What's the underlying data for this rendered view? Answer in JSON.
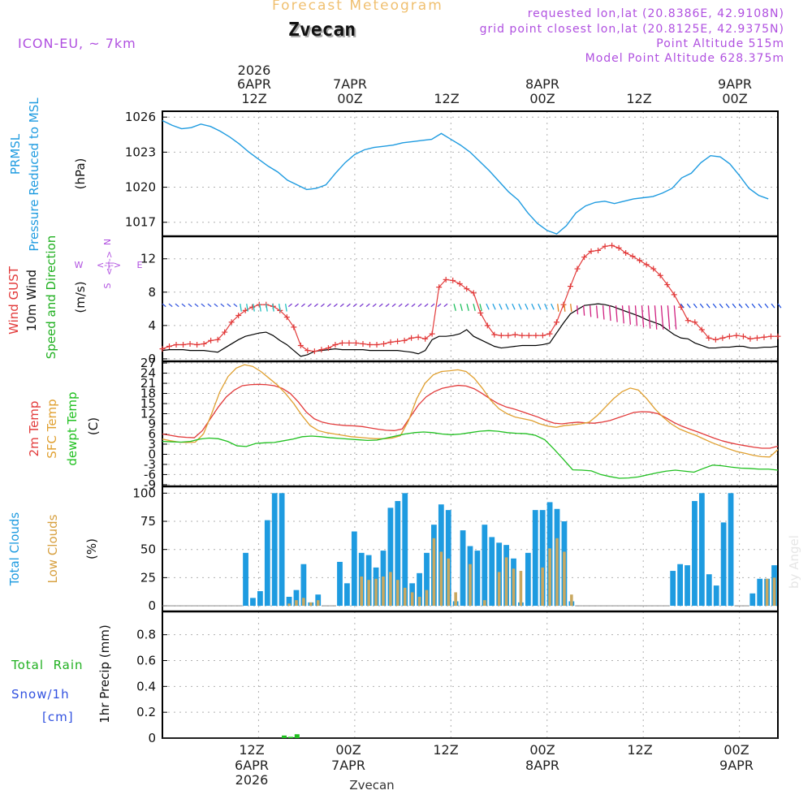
{
  "header": {
    "title": "Forecast Meteogram",
    "location": "Zvecan",
    "model": "ICON-EU, ~ 7km",
    "requested": "requested lon,lat (20.8386E, 42.9108N)",
    "gridpoint": "grid point closest lon,lat (20.8125E, 42.9375N)",
    "point_alt": "Point Altitude 515m",
    "model_alt": "Model Point Altitude 628.375m",
    "credit": "by Angel",
    "footer_name": "Zvecan"
  },
  "colors": {
    "pressure": "#1e9be0",
    "gust": "#e23a3a",
    "wind": "#000000",
    "temp2m": "#e23a3a",
    "sfc": "#e0a030",
    "dewpt": "#20c020",
    "total_clouds": "#1e9be0",
    "low_clouds": "#c9a860",
    "rain": "#20c020",
    "snow": "#3050e0",
    "header_purple": "#b050e0",
    "title_orange": "#f0c070"
  },
  "top_axis": [
    {
      "l1": "2026",
      "l2": "6APR",
      "l3": "12Z"
    },
    {
      "l1": "",
      "l2": "7APR",
      "l3": "00Z"
    },
    {
      "l1": "",
      "l2": "",
      "l3": "12Z"
    },
    {
      "l1": "",
      "l2": "8APR",
      "l3": "00Z"
    },
    {
      "l1": "",
      "l2": "",
      "l3": "12Z"
    },
    {
      "l1": "",
      "l2": "9APR",
      "l3": "00Z"
    }
  ],
  "bottom_axis": [
    {
      "l1": "12Z",
      "l2": "6APR",
      "l3": "2026"
    },
    {
      "l1": "00Z",
      "l2": "7APR",
      "l3": ""
    },
    {
      "l1": "12Z",
      "l2": "",
      "l3": ""
    },
    {
      "l1": "00Z",
      "l2": "8APR",
      "l3": ""
    },
    {
      "l1": "12Z",
      "l2": "",
      "l3": ""
    },
    {
      "l1": "00Z",
      "l2": "9APR",
      "l3": ""
    }
  ],
  "chart_data": [
    {
      "type": "line",
      "panel": "pressure",
      "title": "PRMSL Pressure Reduced to MSL",
      "ylabel": "(hPa)",
      "ylim": [
        1015.8,
        1026.5
      ],
      "yticks": [
        1017,
        1020,
        1023,
        1026
      ],
      "series": [
        {
          "name": "PRMSL",
          "x": [
            0,
            3,
            6,
            9,
            12,
            15,
            18,
            21,
            24,
            27,
            30,
            33,
            36,
            39,
            42,
            45,
            48,
            51,
            54,
            57,
            60,
            63,
            66,
            69,
            72,
            75,
            78,
            81,
            84,
            87,
            90,
            93,
            96,
            99,
            102,
            105,
            108,
            111,
            114,
            117,
            120,
            123,
            126,
            129,
            132,
            135,
            138,
            141,
            144,
            147,
            150,
            153,
            156,
            159,
            162,
            165,
            168,
            171,
            174,
            177,
            180,
            183,
            186,
            189
          ],
          "values": [
            1025.7,
            1025.3,
            1025.0,
            1025.1,
            1025.4,
            1025.2,
            1024.8,
            1024.3,
            1023.7,
            1023.0,
            1022.4,
            1021.8,
            1021.3,
            1020.6,
            1020.2,
            1019.8,
            1019.9,
            1020.2,
            1021.2,
            1022.1,
            1022.8,
            1023.2,
            1023.4,
            1023.5,
            1023.6,
            1023.8,
            1023.9,
            1024.0,
            1024.1,
            1024.6,
            1024.1,
            1023.6,
            1023.0,
            1022.2,
            1021.4,
            1020.5,
            1019.6,
            1018.9,
            1017.8,
            1016.9,
            1016.3,
            1016.0,
            1016.7,
            1017.8,
            1018.4,
            1018.7,
            1018.8,
            1018.6,
            1018.8,
            1019.0,
            1019.1,
            1019.2,
            1019.5,
            1019.9,
            1020.8,
            1021.2,
            1022.1,
            1022.7,
            1022.6,
            1022.0,
            1021.0,
            1019.9,
            1019.3,
            1019.0
          ]
        }
      ]
    },
    {
      "type": "line",
      "panel": "wind",
      "title": "Wind GUST / 10m Wind Speed and Direction",
      "ylabel": "(m/s)",
      "ylim": [
        -0.3,
        14.7
      ],
      "yticks": [
        0,
        4,
        8,
        12
      ],
      "compass": {
        "n": "N",
        "s": "S",
        "w": "W",
        "e": "E",
        "arrow": "<-|->"
      },
      "series": [
        {
          "name": "Wind GUST",
          "values": [
            1.2,
            1.5,
            1.7,
            1.7,
            1.8,
            1.7,
            1.8,
            2.2,
            2.3,
            3.2,
            4.4,
            5.2,
            5.8,
            6.2,
            6.5,
            6.5,
            6.3,
            5.8,
            5.0,
            3.8,
            1.6,
            1.0,
            0.9,
            1.1,
            1.3,
            1.7,
            1.9,
            1.9,
            1.9,
            1.8,
            1.7,
            1.7,
            1.8,
            2.0,
            2.1,
            2.2,
            2.5,
            2.6,
            2.4,
            3.0,
            8.6,
            9.5,
            9.4,
            9.0,
            8.4,
            7.9,
            5.5,
            4.0,
            2.9,
            2.8,
            2.8,
            2.9,
            2.8,
            2.8,
            2.8,
            2.8,
            3.0,
            4.4,
            6.5,
            8.7,
            10.8,
            12.2,
            12.9,
            13.0,
            13.5,
            13.6,
            13.3,
            12.7,
            12.3,
            11.8,
            11.3,
            10.8,
            10.0,
            8.9,
            7.7,
            6.2,
            4.6,
            4.4,
            3.5,
            2.5,
            2.3,
            2.5,
            2.7,
            2.8,
            2.7,
            2.4,
            2.5,
            2.6,
            2.7,
            2.7
          ]
        },
        {
          "name": "10m Wind",
          "values": [
            1.0,
            1.1,
            1.1,
            1.1,
            1.0,
            1.0,
            1.0,
            0.9,
            0.8,
            1.3,
            1.8,
            2.3,
            2.7,
            2.9,
            3.1,
            3.2,
            2.8,
            2.2,
            1.7,
            1.0,
            0.3,
            0.5,
            0.9,
            1.0,
            1.1,
            1.2,
            1.1,
            1.1,
            1.1,
            1.1,
            1.0,
            1.0,
            1.0,
            1.0,
            1.0,
            0.9,
            0.8,
            0.6,
            1.0,
            2.3,
            2.7,
            2.7,
            2.8,
            3.0,
            3.5,
            2.7,
            2.3,
            1.9,
            1.5,
            1.3,
            1.4,
            1.5,
            1.6,
            1.6,
            1.6,
            1.7,
            1.9,
            3.1,
            4.3,
            5.4,
            5.9,
            6.4,
            6.5,
            6.6,
            6.5,
            6.3,
            6.0,
            5.7,
            5.4,
            5.1,
            4.7,
            4.4,
            4.1,
            3.5,
            2.9,
            2.5,
            2.4,
            1.9,
            1.6,
            1.3,
            1.3,
            1.4,
            1.4,
            1.5,
            1.5,
            1.3,
            1.3,
            1.4,
            1.4,
            1.5
          ]
        }
      ]
    },
    {
      "type": "line",
      "panel": "temperature",
      "title": "2m Temp / SFC Temp / dewpt Temp",
      "ylabel": "(C)",
      "ylim": [
        -9.5,
        27.5
      ],
      "yticks": [
        -9,
        -6,
        -3,
        0,
        3,
        6,
        9,
        12,
        15,
        18,
        21,
        24,
        27
      ],
      "series": [
        {
          "name": "2m Temp",
          "values": [
            6.0,
            5.6,
            5.2,
            5.0,
            4.9,
            7.0,
            10.5,
            14.0,
            17.0,
            19.0,
            20.3,
            20.6,
            20.7,
            20.6,
            20.3,
            19.5,
            18.0,
            15.5,
            12.5,
            10.5,
            9.5,
            9.0,
            8.7,
            8.5,
            8.4,
            8.2,
            7.8,
            7.4,
            7.1,
            7.0,
            7.5,
            11.0,
            14.5,
            17.0,
            18.5,
            19.5,
            20.0,
            20.4,
            20.2,
            19.4,
            18.0,
            16.4,
            15.0,
            14.0,
            13.4,
            12.6,
            11.8,
            11.0,
            10.0,
            9.2,
            9.0,
            9.3,
            9.5,
            9.3,
            9.2,
            9.5,
            10.0,
            10.8,
            11.6,
            12.4,
            12.6,
            12.5,
            12.0,
            10.8,
            9.4,
            8.3,
            7.4,
            6.6,
            5.7,
            4.8,
            4.0,
            3.4,
            2.9,
            2.5,
            2.1,
            1.8,
            1.8,
            2.4
          ]
        },
        {
          "name": "SFC Temp",
          "values": [
            4.5,
            4.0,
            3.6,
            3.5,
            3.6,
            6.0,
            12.0,
            18.5,
            23.0,
            25.5,
            26.5,
            26.0,
            24.5,
            22.5,
            20.5,
            18.0,
            15.0,
            11.5,
            8.5,
            7.0,
            6.4,
            6.0,
            5.6,
            5.2,
            5.0,
            4.8,
            4.6,
            4.6,
            4.8,
            5.5,
            10.0,
            16.5,
            21.0,
            23.5,
            24.5,
            24.7,
            25.0,
            24.5,
            22.5,
            19.5,
            16.0,
            13.5,
            12.0,
            11.0,
            10.5,
            10.0,
            9.0,
            8.3,
            8.0,
            8.5,
            8.7,
            9.0,
            9.5,
            11.5,
            14.0,
            16.5,
            18.5,
            19.6,
            19.0,
            16.5,
            13.5,
            11.0,
            9.0,
            7.5,
            6.5,
            5.6,
            4.5,
            3.4,
            2.5,
            1.6,
            0.8,
            0.3,
            -0.3,
            -0.7,
            -0.8,
            1.4
          ]
        },
        {
          "name": "dewpt Temp",
          "values": [
            3.8,
            3.7,
            3.6,
            3.8,
            4.5,
            4.8,
            4.6,
            3.8,
            2.5,
            2.3,
            3.2,
            3.4,
            3.5,
            4.0,
            4.5,
            5.2,
            5.4,
            5.2,
            4.9,
            4.7,
            4.5,
            4.3,
            4.1,
            4.2,
            4.8,
            5.4,
            6.0,
            6.4,
            6.6,
            6.4,
            6.0,
            5.8,
            6.0,
            6.4,
            6.8,
            7.0,
            6.8,
            6.4,
            6.2,
            6.1,
            5.6,
            4.3,
            1.5,
            -1.5,
            -4.6,
            -4.7,
            -4.9,
            -6.0,
            -6.6,
            -7.1,
            -7.0,
            -6.7,
            -6.1,
            -5.5,
            -5.0,
            -4.7,
            -5.0,
            -5.3,
            -4.2,
            -3.2,
            -3.4,
            -3.8,
            -4.1,
            -4.2,
            -4.4,
            -4.4,
            -4.7
          ]
        }
      ]
    },
    {
      "type": "bar",
      "panel": "clouds",
      "title": "Total Clouds / Low Clouds",
      "ylabel": "(%)",
      "ylim": [
        -5,
        106
      ],
      "yticks": [
        0,
        25,
        50,
        75,
        100
      ],
      "series": [
        {
          "name": "Total Clouds",
          "values": [
            0,
            0,
            0,
            0,
            0,
            0,
            0,
            0,
            0,
            0,
            0,
            47,
            7,
            13,
            76,
            100,
            100,
            8,
            14,
            37,
            3,
            10,
            0,
            0,
            39,
            20,
            66,
            47,
            45,
            34,
            49,
            87,
            93,
            100,
            20,
            29,
            47,
            72,
            90,
            85,
            4,
            67,
            53,
            49,
            72,
            61,
            56,
            54,
            42,
            3,
            47,
            85,
            85,
            92,
            86,
            75,
            4,
            0,
            0,
            0,
            0,
            0,
            0,
            0,
            0,
            0,
            0,
            0,
            0,
            0,
            31,
            37,
            36,
            93,
            100,
            28,
            18,
            74,
            100,
            0,
            0,
            11,
            24,
            24,
            36
          ]
        },
        {
          "name": "Low Clouds",
          "values": [
            0,
            0,
            0,
            0,
            0,
            0,
            0,
            0,
            0,
            0,
            0,
            0,
            0,
            0,
            0,
            0,
            0,
            2,
            5,
            7,
            3,
            5,
            0,
            0,
            0,
            0,
            0,
            26,
            23,
            24,
            26,
            30,
            23,
            16,
            12,
            8,
            14,
            60,
            48,
            42,
            12,
            0,
            37,
            0,
            5,
            0,
            30,
            43,
            33,
            31,
            0,
            0,
            34,
            51,
            60,
            48,
            10,
            0,
            0,
            0,
            0,
            0,
            0,
            0,
            0,
            0,
            0,
            0,
            0,
            0,
            0,
            0,
            0,
            0,
            0,
            0,
            0,
            0,
            0,
            0,
            0,
            0,
            0,
            24,
            25
          ]
        }
      ]
    },
    {
      "type": "bar",
      "panel": "precip",
      "title": "Total Rain / Snow/1h [cm]",
      "ylabel": "1hr Precip (mm)",
      "ylim": [
        0,
        0.98
      ],
      "yticks": [
        0,
        0.2,
        0.4,
        0.6,
        0.8
      ],
      "series": [
        {
          "name": "Total Rain",
          "x": [
            38,
            40,
            42
          ],
          "values": [
            0.02,
            0.01,
            0.03
          ]
        }
      ]
    }
  ]
}
